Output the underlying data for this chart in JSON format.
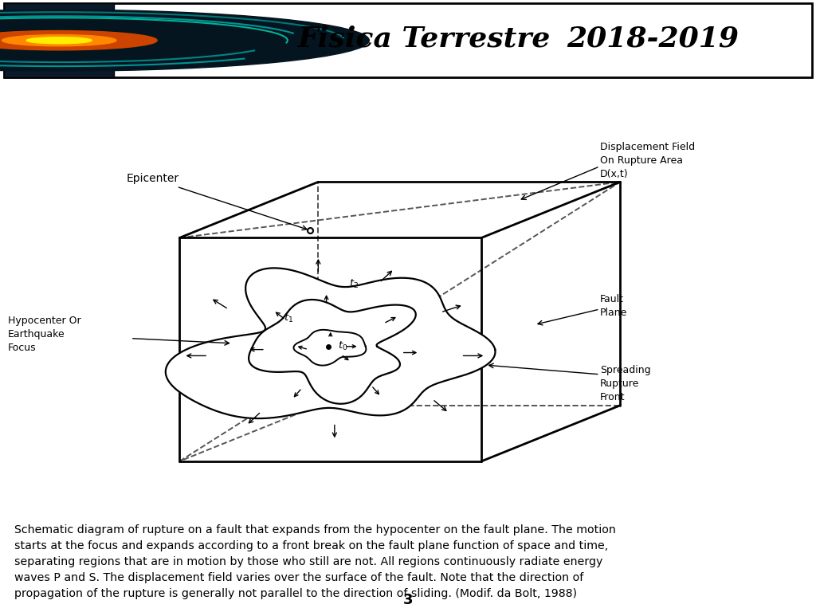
{
  "bg_color": "#ffffff",
  "line_color": "#000000",
  "label_epicenter": "Epicenter",
  "label_hypocenter": "Hypocenter Or\nEarthquake\nFocus",
  "label_fault_plane": "Fault\nPlane",
  "label_displacement": "Displacement Field\nOn Rupture Area\nD(x,t)",
  "label_spreading": "Spreading\nRupture\nFront",
  "caption_line1": "Schematic diagram of rupture on a fault that expands from the hypocenter on the fault plane. The motion",
  "caption_line2": "starts at the focus and expands according to a front break on the fault plane function of space and time,",
  "caption_line3": "separating regions that are in motion by those who still are not. All regions continuously radiate energy",
  "caption_line4": "waves P and S. The displacement field varies over the surface of the fault. Note that the direction of",
  "caption_line5": "propagation of the rupture is generally not parallel to the direction of sliding. (Modif. da Bolt, 1988)",
  "page_number": "3",
  "header_title1": "Fisica Terrestre",
  "header_title2": "2018-2019"
}
